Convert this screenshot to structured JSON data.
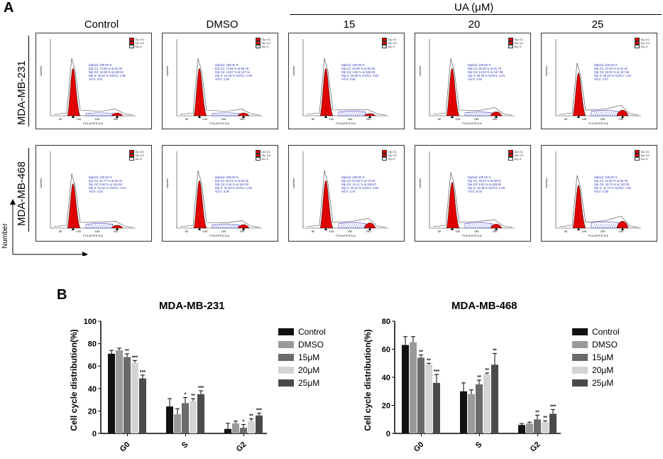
{
  "panel_a_label": "A",
  "panel_b_label": "B",
  "ua_label": "UA (μM)",
  "column_labels": [
    "Control",
    "DMSO",
    "15",
    "20",
    "25"
  ],
  "row_labels": [
    "MDA-MB-231",
    "MDA-MB-468"
  ],
  "axis_number_label": "Number",
  "histogram": {
    "x_axis_label": "FL3-A:PCS 5-A",
    "x_ticks": [
      "50",
      "100",
      "150",
      "200"
    ],
    "legend": [
      "Dip G1",
      "Dip G2",
      "Dip S"
    ],
    "stats": [
      [
        "Diploid: 100.00 %",
        "Dip G1: 72.56 % at 82.05",
        "Dip G2: 10.06 % at 160.81",
        "Dip S: 16.57 % G2/G1: 1.96",
        "%CV: 3.81"
      ],
      [
        "Diploid: 100.00 %",
        "Dip G1: 74.56 % at 86.16",
        "Dip G2: 10.87 % at 167.12",
        "Dip S: 14.38 % G2/G1: 1.96",
        "%CV: 4.39"
      ],
      [
        "Diploid: 100.00 %",
        "Dip G1: 63.69 % at 83.35",
        "Dip G2: 2.63 % at 165.03",
        "Dip S: 33.68 % G2/G1: 1.98",
        "%CV: 3.56"
      ],
      [
        "Diploid: 100.00 %",
        "Dip G1: 60.23 % at 81.73",
        "Dip G2: 14.20 % at 167.38",
        "Dip S: 25.36 % G2/G1: 1.94",
        "%CV: 4.48"
      ],
      [
        "Diploid: 100.00 %",
        "Dip G1: 47.40 % at 81.20",
        "Dip G2: 16.92 % at 157.52",
        "Dip S: 35.63 % G2/G1: 1.94",
        "%CV: 4.67"
      ],
      [
        "Diploid: 100.00 %",
        "Dip G1: 61.77 % at 83.42",
        "Dip G2: 6.64 % at 161.84",
        "Dip S: 31.51 % G2/G1: 1.94",
        "%CV: 4.03"
      ],
      [
        "Diploid: 100.00 %",
        "Dip G1: 60.21 % at 82.30",
        "Dip G2: 8.16 % at 161.30",
        "Dip S: 31.63 % G2/G1: 1.96",
        "%CV: 4.09"
      ],
      [
        "Diploid: 100.00 %",
        "Dip G1: 51.58 % at 79.93",
        "Dip G2: 14.11 % at 156.67",
        "Dip S: 34.31 % G2/G1: 1.96",
        "%CV: 4.47"
      ],
      [
        "Diploid: 100.00 %",
        "Dip G1: 49.40 % at 80.67",
        "Dip G2: 8.51 % at 165.50",
        "Dip S: 42.09 % G2/G1: 1.98",
        "%CV: 5.03"
      ],
      [
        "Diploid: 100.00 %",
        "Dip G1: 41.50 % at 82.79",
        "Dip G2: 16.75 % at 162.29",
        "Dip S: 41.74 % G2/G1: 1.96",
        "%CV: 4.38"
      ]
    ]
  },
  "colors": {
    "hist_peak": "#e00000",
    "hist_s": "#3a3ad0",
    "series": [
      "#111111",
      "#9a9a9a",
      "#6a6a6a",
      "#d4d4d4",
      "#4a4a4a"
    ]
  },
  "chart_data": [
    {
      "type": "bar",
      "title": "MDA-MB-231",
      "ylabel": "Cell cycle distribution(%)",
      "ylim": [
        0,
        100
      ],
      "yticks": [
        "0",
        "20",
        "40",
        "60",
        "80",
        "100"
      ],
      "categories": [
        "G0",
        "S",
        "G2"
      ],
      "series": [
        {
          "name": "Control",
          "values": [
            71,
            24,
            4
          ],
          "errors": [
            3,
            7,
            5
          ],
          "marks": [
            "",
            "",
            ""
          ]
        },
        {
          "name": "DMSO",
          "values": [
            74,
            17,
            9
          ],
          "errors": [
            2,
            5,
            2
          ],
          "marks": [
            "",
            "",
            ""
          ]
        },
        {
          "name": "15μM",
          "values": [
            68,
            27,
            5
          ],
          "errors": [
            3,
            5,
            3
          ],
          "marks": [
            "**",
            "*",
            "*"
          ]
        },
        {
          "name": "20μM",
          "values": [
            63,
            29,
            11
          ],
          "errors": [
            2,
            2,
            2
          ],
          "marks": [
            "***",
            "**",
            "**"
          ]
        },
        {
          "name": "25μM",
          "values": [
            49,
            35,
            16
          ],
          "errors": [
            3,
            3,
            2
          ],
          "marks": [
            "***",
            "***",
            "***"
          ]
        }
      ]
    },
    {
      "type": "bar",
      "title": "MDA-MB-468",
      "ylabel": "Cell cycle distribution(%)",
      "ylim": [
        0,
        80
      ],
      "yticks": [
        "0",
        "20",
        "40",
        "60",
        "80"
      ],
      "categories": [
        "G0",
        "S",
        "G2"
      ],
      "series": [
        {
          "name": "Control",
          "values": [
            63,
            30,
            6
          ],
          "errors": [
            6,
            6,
            1
          ],
          "marks": [
            "",
            "",
            ""
          ]
        },
        {
          "name": "DMSO",
          "values": [
            65,
            28,
            7
          ],
          "errors": [
            4,
            3,
            1
          ],
          "marks": [
            "",
            "",
            ""
          ]
        },
        {
          "name": "15μM",
          "values": [
            54,
            35,
            10
          ],
          "errors": [
            2,
            3,
            3
          ],
          "marks": [
            "**",
            "**",
            "**"
          ]
        },
        {
          "name": "20μM",
          "values": [
            49,
            42,
            8
          ],
          "errors": [
            1,
            1,
            1
          ],
          "marks": [
            "**",
            "**",
            "**"
          ]
        },
        {
          "name": "25μM",
          "values": [
            36,
            49,
            14
          ],
          "errors": [
            6,
            8,
            3
          ],
          "marks": [
            "***",
            "**",
            "***"
          ]
        }
      ]
    }
  ]
}
